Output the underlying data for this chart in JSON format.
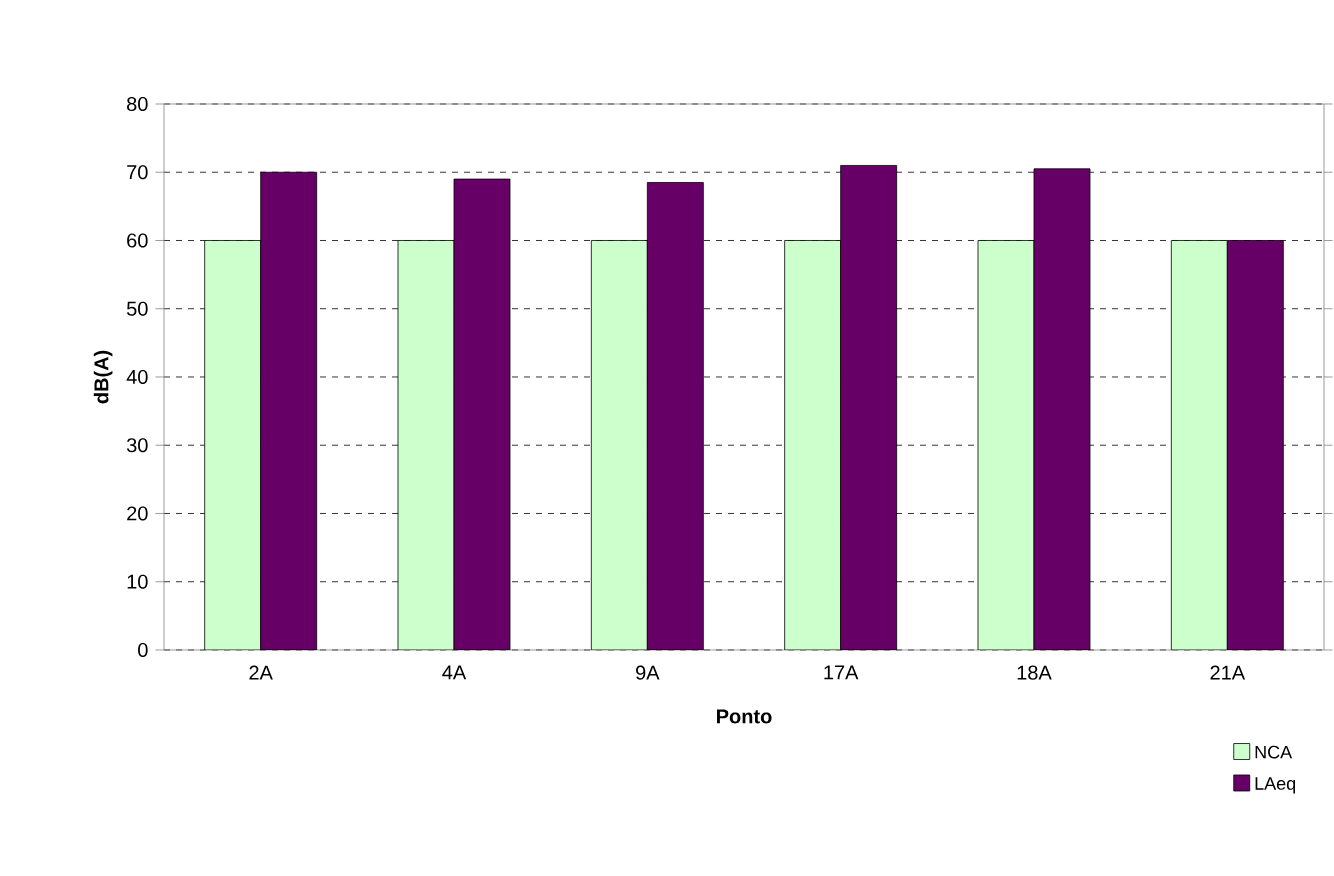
{
  "chart_data": {
    "type": "bar",
    "xlabel": "Ponto",
    "ylabel": "dB(A)",
    "categories": [
      "2A",
      "4A",
      "9A",
      "17A",
      "18A",
      "21A"
    ],
    "series": [
      {
        "name": "NCA",
        "color": "#ccffcc",
        "values": [
          60,
          60,
          60,
          60,
          60,
          60
        ]
      },
      {
        "name": "LAeq",
        "color": "#660066",
        "values": [
          70,
          69,
          68.5,
          71,
          70.5,
          60
        ]
      }
    ],
    "ylim": [
      0,
      80
    ],
    "yticks": [
      0,
      10,
      20,
      30,
      40,
      50,
      60,
      70,
      80
    ],
    "grid": "y",
    "legend": "bottom right"
  }
}
